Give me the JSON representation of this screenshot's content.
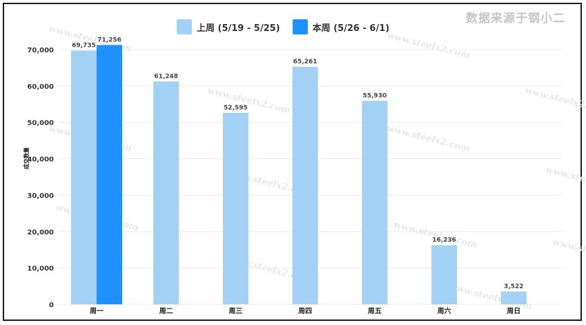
{
  "source_note": "数据来源于钢小二",
  "watermark_text": "www.steelx2.com",
  "colors": {
    "last_week": "#a3d1f5",
    "this_week": "#1e90ff",
    "grid": "#ececec"
  },
  "chart_data": {
    "type": "bar",
    "categories": [
      "周一",
      "周二",
      "周三",
      "周四",
      "周五",
      "周六",
      "周日"
    ],
    "series": [
      {
        "name": "上周 (5/19 - 5/25)",
        "values": [
          69735,
          61248,
          52595,
          65261,
          55930,
          16236,
          3522
        ],
        "labels": [
          "69,735",
          "61,248",
          "52,595",
          "65,261",
          "55,930",
          "16,236",
          "3,522"
        ]
      },
      {
        "name": "本周 (5/26 - 6/1)",
        "values": [
          71256,
          null,
          null,
          null,
          null,
          null,
          null
        ],
        "labels": [
          "71,256",
          "",
          "",
          "",
          "",
          "",
          ""
        ]
      }
    ],
    "ylabel": "成交数量",
    "yticks": [
      "0",
      "10,000",
      "20,000",
      "30,000",
      "40,000",
      "50,000",
      "60,000",
      "70,000"
    ],
    "ylim": [
      0,
      70000
    ],
    "grid": true,
    "legend": "top-center"
  }
}
